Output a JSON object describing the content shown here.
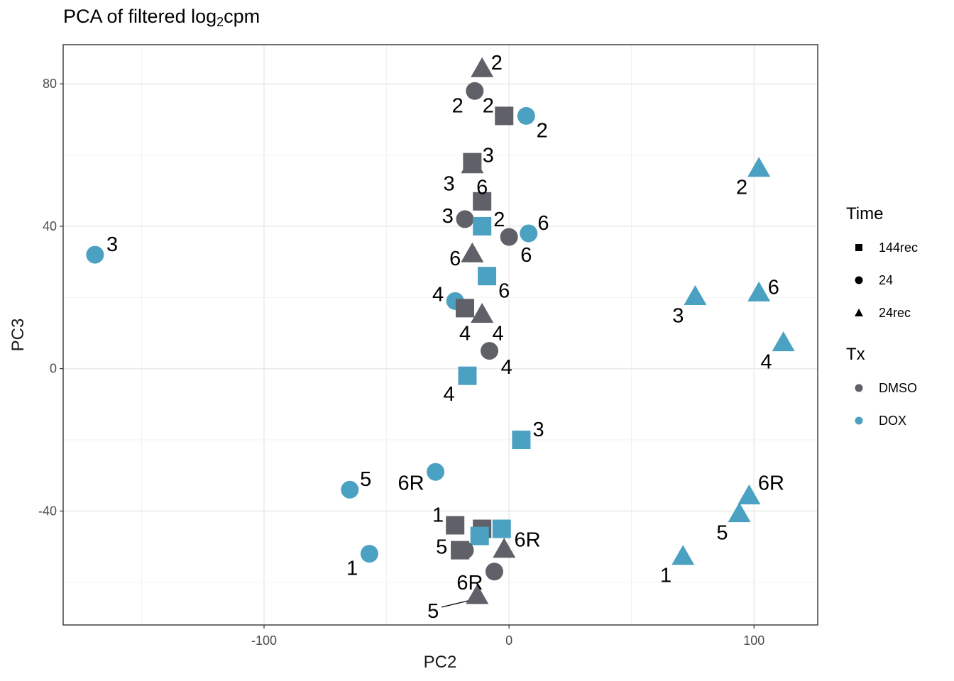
{
  "chart_data": {
    "type": "scatter",
    "title_main": "PCA of filtered log",
    "title_sub": "2",
    "title_end": "cpm",
    "xlabel": "PC2",
    "ylabel": "PC3",
    "xlim": [
      -182,
      126
    ],
    "ylim": [
      -72,
      91
    ],
    "xticks": [
      -100,
      0,
      100
    ],
    "xtick_labels": [
      "-100",
      "0",
      "100"
    ],
    "yticks": [
      -40,
      0,
      40,
      80
    ],
    "ytick_labels": [
      "-40",
      "0",
      "40",
      "80"
    ],
    "grid": true,
    "legend_placement": "right",
    "colors": {
      "DMSO": "#5f6068",
      "DOX": "#4aa1c1"
    },
    "legend": {
      "time_title": "Time",
      "time_items": [
        {
          "label": "144rec",
          "shape": "square"
        },
        {
          "label": "24",
          "shape": "circle"
        },
        {
          "label": "24rec",
          "shape": "triangle"
        }
      ],
      "tx_title": "Tx",
      "tx_items": [
        {
          "label": "DMSO",
          "color": "#5f6068"
        },
        {
          "label": "DOX",
          "color": "#4aa1c1"
        }
      ]
    },
    "points": [
      {
        "x": -11,
        "y": 84,
        "time": "24rec",
        "tx": "DMSO",
        "label": "2",
        "lx": -5,
        "ly": 86
      },
      {
        "x": -14,
        "y": 78,
        "time": "24",
        "tx": "DMSO",
        "label": "2",
        "lx": -21,
        "ly": 74
      },
      {
        "x": -2,
        "y": 71,
        "time": "144rec",
        "tx": "DMSO",
        "label": "2",
        "lx": -8.5,
        "ly": 74
      },
      {
        "x": 7,
        "y": 71,
        "time": "24",
        "tx": "DOX",
        "label": "2",
        "lx": 13.5,
        "ly": 67
      },
      {
        "x": -15,
        "y": 57,
        "time": "24rec",
        "tx": "DMSO",
        "label": "3",
        "lx": -24.5,
        "ly": 52
      },
      {
        "x": -15,
        "y": 58,
        "time": "144rec",
        "tx": "DMSO",
        "label": "3",
        "lx": -8.5,
        "ly": 60
      },
      {
        "x": -11,
        "y": 47,
        "time": "144rec",
        "tx": "DMSO",
        "label": "6",
        "lx": -11,
        "ly": 51
      },
      {
        "x": -18,
        "y": 42,
        "time": "24",
        "tx": "DMSO",
        "label": "3",
        "lx": -25,
        "ly": 43
      },
      {
        "x": -11,
        "y": 40,
        "time": "144rec",
        "tx": "DOX",
        "label": "2",
        "lx": -4,
        "ly": 42
      },
      {
        "x": 0,
        "y": 37,
        "time": "24",
        "tx": "DMSO",
        "label": "6",
        "lx": 7,
        "ly": 32
      },
      {
        "x": 8,
        "y": 38,
        "time": "24",
        "tx": "DOX",
        "label": "6",
        "lx": 14,
        "ly": 41
      },
      {
        "x": -15,
        "y": 32,
        "time": "24rec",
        "tx": "DMSO",
        "label": "6",
        "lx": -22,
        "ly": 31
      },
      {
        "x": -9,
        "y": 26,
        "time": "144rec",
        "tx": "DOX",
        "label": "6",
        "lx": -2,
        "ly": 22
      },
      {
        "x": -22,
        "y": 19,
        "time": "24",
        "tx": "DOX",
        "label": "4",
        "lx": -29,
        "ly": 21
      },
      {
        "x": -18,
        "y": 17,
        "time": "144rec",
        "tx": "DMSO",
        "label": "4",
        "lx": -18,
        "ly": 10
      },
      {
        "x": -11,
        "y": 15,
        "time": "24rec",
        "tx": "DMSO",
        "label": "4",
        "lx": -4.5,
        "ly": 10
      },
      {
        "x": -8,
        "y": 5,
        "time": "24",
        "tx": "DMSO",
        "label": "4",
        "lx": -1,
        "ly": 0.5
      },
      {
        "x": -17,
        "y": -2,
        "time": "144rec",
        "tx": "DOX",
        "label": "4",
        "lx": -24.5,
        "ly": -7
      },
      {
        "x": 5,
        "y": -20,
        "time": "144rec",
        "tx": "DOX",
        "label": "3",
        "lx": 12,
        "ly": -17
      },
      {
        "x": -169,
        "y": 32,
        "time": "24",
        "tx": "DOX",
        "label": "3",
        "lx": -162,
        "ly": 35
      },
      {
        "x": 102,
        "y": 56,
        "time": "24rec",
        "tx": "DOX",
        "label": "2",
        "lx": 95,
        "ly": 51
      },
      {
        "x": 76,
        "y": 20,
        "time": "24rec",
        "tx": "DOX",
        "label": "3",
        "lx": 69,
        "ly": 15
      },
      {
        "x": 102,
        "y": 21,
        "time": "24rec",
        "tx": "DOX",
        "label": "6",
        "lx": 108,
        "ly": 23
      },
      {
        "x": 112,
        "y": 7,
        "time": "24rec",
        "tx": "DOX",
        "label": "4",
        "lx": 105,
        "ly": 2
      },
      {
        "x": -30,
        "y": -29,
        "time": "24",
        "tx": "DOX",
        "label": "6R",
        "lx": -40,
        "ly": -32
      },
      {
        "x": -65,
        "y": -34,
        "time": "24",
        "tx": "DOX",
        "label": "5",
        "lx": -58.5,
        "ly": -31
      },
      {
        "x": -57,
        "y": -52,
        "time": "24",
        "tx": "DOX",
        "label": "1",
        "lx": -64,
        "ly": -56
      },
      {
        "x": -22,
        "y": -44,
        "time": "144rec",
        "tx": "DMSO",
        "label": "1",
        "lx": -29,
        "ly": -41
      },
      {
        "x": -11,
        "y": -45,
        "time": "144rec",
        "tx": "DMSO",
        "label": "",
        "lx": 0,
        "ly": 0
      },
      {
        "x": -3,
        "y": -45,
        "time": "144rec",
        "tx": "DOX",
        "label": "",
        "lx": 0,
        "ly": 0
      },
      {
        "x": -12,
        "y": -47,
        "time": "144rec",
        "tx": "DOX",
        "label": "",
        "lx": 0,
        "ly": 0
      },
      {
        "x": -18,
        "y": -51,
        "time": "24",
        "tx": "DMSO",
        "label": "",
        "lx": 0,
        "ly": 0
      },
      {
        "x": -20,
        "y": -51,
        "time": "144rec",
        "tx": "DMSO",
        "label": "5",
        "lx": -27.5,
        "ly": -50
      },
      {
        "x": -2,
        "y": -51,
        "time": "24rec",
        "tx": "DMSO",
        "label": "6R",
        "lx": 7.5,
        "ly": -48
      },
      {
        "x": -6,
        "y": -57,
        "time": "24",
        "tx": "DMSO",
        "label": "6R",
        "lx": -16,
        "ly": -60
      },
      {
        "x": -13,
        "y": -64,
        "time": "24rec",
        "tx": "DMSO",
        "label": "5",
        "lx": -31,
        "ly": -68
      },
      {
        "x": 98,
        "y": -36,
        "time": "24rec",
        "tx": "DOX",
        "label": "6R",
        "lx": 107,
        "ly": -32
      },
      {
        "x": 94,
        "y": -41,
        "time": "24rec",
        "tx": "DOX",
        "label": "5",
        "lx": 87,
        "ly": -46
      },
      {
        "x": 71,
        "y": -53,
        "time": "24rec",
        "tx": "DOX",
        "label": "1",
        "lx": 64,
        "ly": -58
      }
    ],
    "leader_lines": [
      {
        "x1": -27.5,
        "y1": -67,
        "x2": -15.5,
        "y2": -65
      }
    ]
  }
}
